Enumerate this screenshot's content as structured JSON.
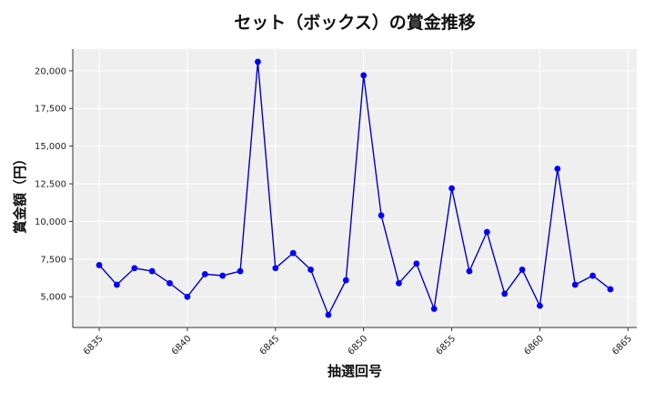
{
  "chart_data": {
    "type": "line",
    "title": "セット（ボックス）の賞金推移",
    "xlabel": "抽選回号",
    "ylabel": "賞金額（円）",
    "x": [
      6835,
      6836,
      6837,
      6838,
      6839,
      6840,
      6841,
      6842,
      6843,
      6844,
      6845,
      6846,
      6847,
      6848,
      6849,
      6850,
      6851,
      6852,
      6853,
      6854,
      6855,
      6856,
      6857,
      6858,
      6859,
      6860,
      6861,
      6862,
      6863,
      6864
    ],
    "series": [
      {
        "values": [
          7100,
          5800,
          6900,
          6700,
          5900,
          5000,
          6500,
          6400,
          6700,
          20600,
          6900,
          7900,
          6800,
          3800,
          6100,
          19700,
          10400,
          5900,
          7200,
          4200,
          12200,
          6700,
          9300,
          5200,
          6800,
          4400,
          13500,
          5800,
          6400,
          5500
        ]
      }
    ],
    "xticks": [
      "6835",
      "6840",
      "6845",
      "6850",
      "6855",
      "6860",
      "6865"
    ],
    "yticks": [
      "5,000",
      "7,500",
      "10,000",
      "12,500",
      "15,000",
      "17,500",
      "20,000"
    ],
    "xlim": [
      6833.5,
      6865.5
    ],
    "ylim": [
      2960,
      21440
    ],
    "grid": true,
    "colors": {
      "line": "#0000cc",
      "marker": "#0000ff",
      "plot_bg": "#efefef",
      "grid": "#ffffff"
    }
  }
}
